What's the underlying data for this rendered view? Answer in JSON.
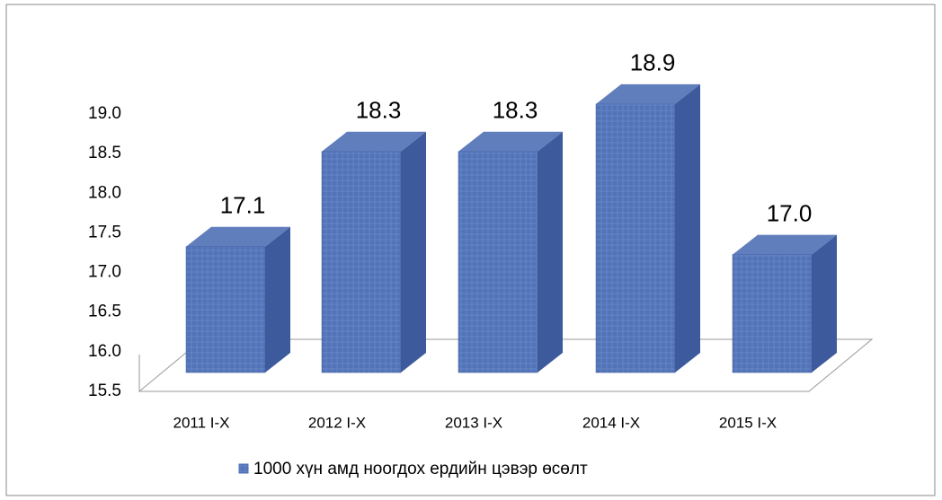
{
  "chart_data": {
    "type": "bar3d",
    "categories": [
      "2011 I-X",
      "2012 I-X",
      "2013 I-X",
      "2014 I-X",
      "2015 I-X"
    ],
    "series": [
      {
        "name": "1000 хүн амд ноогдох ердийн цэвэр өсөлт",
        "color": "#4f6fb5",
        "values": [
          17.1,
          18.3,
          18.3,
          18.9,
          17.0
        ],
        "value_labels": [
          "17.1",
          "18.3",
          "18.3",
          "18.9",
          "17.0"
        ]
      }
    ],
    "ylim": [
      15.5,
      19.0
    ],
    "yticks": [
      15.5,
      {
        "value": 16,
        "label": "16.0"
      },
      16.5,
      {
        "value": 17,
        "label": "17.0"
      },
      17.5,
      {
        "value": 18,
        "label": "18.0"
      },
      18.5,
      {
        "value": 19,
        "label": "19.0"
      }
    ],
    "legend": "bottom"
  }
}
